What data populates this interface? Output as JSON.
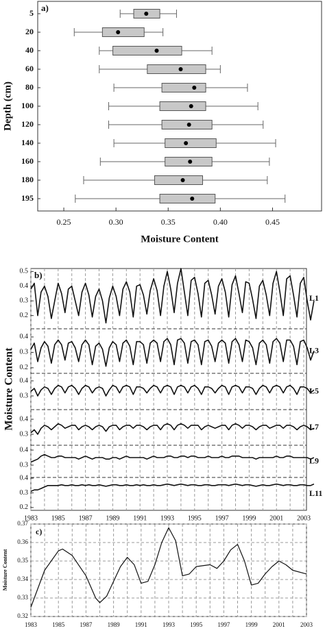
{
  "chart_data": [
    {
      "type": "box",
      "label": "a)",
      "xlabel": "Moisture Content",
      "ylabel": "Depth (cm)",
      "categories": [
        "5",
        "20",
        "40",
        "60",
        "80",
        "100",
        "120",
        "140",
        "160",
        "180",
        "195"
      ],
      "boxes": [
        {
          "whislo": 0.304,
          "q1": 0.317,
          "q3": 0.342,
          "whishi": 0.358,
          "mean": 0.329
        },
        {
          "whislo": 0.26,
          "q1": 0.287,
          "q3": 0.327,
          "whishi": 0.345,
          "mean": 0.302
        },
        {
          "whislo": 0.284,
          "q1": 0.297,
          "q3": 0.363,
          "whishi": 0.392,
          "mean": 0.339
        },
        {
          "whislo": 0.284,
          "q1": 0.33,
          "q3": 0.386,
          "whishi": 0.4,
          "mean": 0.362
        },
        {
          "whislo": 0.298,
          "q1": 0.344,
          "q3": 0.386,
          "whishi": 0.426,
          "mean": 0.375
        },
        {
          "whislo": 0.293,
          "q1": 0.342,
          "q3": 0.386,
          "whishi": 0.436,
          "mean": 0.372
        },
        {
          "whislo": 0.293,
          "q1": 0.344,
          "q3": 0.392,
          "whishi": 0.441,
          "mean": 0.37
        },
        {
          "whislo": 0.298,
          "q1": 0.347,
          "q3": 0.396,
          "whishi": 0.453,
          "mean": 0.367
        },
        {
          "whislo": 0.285,
          "q1": 0.347,
          "q3": 0.392,
          "whishi": 0.447,
          "mean": 0.371
        },
        {
          "whislo": 0.269,
          "q1": 0.337,
          "q3": 0.383,
          "whishi": 0.445,
          "mean": 0.364
        },
        {
          "whislo": 0.261,
          "q1": 0.342,
          "q3": 0.395,
          "whishi": 0.462,
          "mean": 0.373
        }
      ],
      "color": "#c8c8c8",
      "xlim": [
        0.225,
        0.497
      ],
      "xticks": [
        0.25,
        {
          "value": 0.3,
          "label": "0.30"
        },
        0.35,
        {
          "value": 0.4,
          "label": "0.40"
        },
        0.45
      ]
    },
    {
      "type": "line",
      "label": "b)",
      "ylabel": "Moisture Content",
      "x": [
        1983,
        1983.25,
        1983.5,
        1983.75,
        1984,
        1984.25,
        1984.5,
        1984.75,
        1985,
        1985.25,
        1985.5,
        1985.75,
        1986,
        1986.25,
        1986.5,
        1986.75,
        1987,
        1987.25,
        1987.5,
        1987.75,
        1988,
        1988.25,
        1988.5,
        1988.75,
        1989,
        1989.25,
        1989.5,
        1989.75,
        1990,
        1990.25,
        1990.5,
        1990.75,
        1991,
        1991.25,
        1991.5,
        1991.75,
        1992,
        1992.25,
        1992.5,
        1992.75,
        1993,
        1993.25,
        1993.5,
        1993.75,
        1994,
        1994.25,
        1994.5,
        1994.75,
        1995,
        1995.25,
        1995.5,
        1995.75,
        1996,
        1996.25,
        1996.5,
        1996.75,
        1997,
        1997.25,
        1997.5,
        1997.75,
        1998,
        1998.25,
        1998.5,
        1998.75,
        1999,
        1999.25,
        1999.5,
        1999.75,
        2000,
        2000.25,
        2000.5,
        2000.75,
        2001,
        2001.25,
        2001.5,
        2001.75,
        2002,
        2002.25,
        2002.5,
        2002.75,
        2003,
        2003.25,
        2003.5,
        2003.75
      ],
      "xlim": [
        1983,
        2003.2
      ],
      "xticks": [
        1983,
        1985,
        1987,
        1989,
        1991,
        1993,
        1995,
        1997,
        1999,
        2001,
        2003
      ],
      "xminorticks": [
        1984,
        1986,
        1988,
        1990,
        1992,
        1994,
        1996,
        1998,
        2000,
        2002
      ],
      "color": "#111111",
      "series": [
        {
          "name": "L1",
          "ylim": [
            0.11,
            0.52
          ],
          "yticks": [
            0.2,
            0.3,
            0.4,
            0.5
          ],
          "values": [
            0.38,
            0.42,
            0.2,
            0.36,
            0.4,
            0.33,
            0.18,
            0.3,
            0.42,
            0.35,
            0.22,
            0.38,
            0.4,
            0.3,
            0.2,
            0.36,
            0.42,
            0.34,
            0.19,
            0.33,
            0.38,
            0.3,
            0.15,
            0.32,
            0.4,
            0.33,
            0.2,
            0.38,
            0.43,
            0.36,
            0.19,
            0.4,
            0.41,
            0.34,
            0.21,
            0.37,
            0.45,
            0.37,
            0.2,
            0.4,
            0.5,
            0.38,
            0.22,
            0.42,
            0.52,
            0.36,
            0.2,
            0.44,
            0.46,
            0.35,
            0.19,
            0.42,
            0.44,
            0.34,
            0.21,
            0.4,
            0.45,
            0.36,
            0.19,
            0.41,
            0.47,
            0.35,
            0.22,
            0.43,
            0.42,
            0.31,
            0.18,
            0.4,
            0.44,
            0.34,
            0.2,
            0.42,
            0.5,
            0.36,
            0.2,
            0.45,
            0.47,
            0.34,
            0.19,
            0.42,
            0.46,
            0.3,
            0.17,
            0.3
          ]
        },
        {
          "name": "L3",
          "ylim": [
            0.164,
            0.453
          ],
          "yticks": [
            0.2,
            0.3,
            0.4
          ],
          "values": [
            0.32,
            0.36,
            0.24,
            0.33,
            0.37,
            0.34,
            0.23,
            0.35,
            0.38,
            0.35,
            0.25,
            0.36,
            0.37,
            0.33,
            0.24,
            0.35,
            0.38,
            0.35,
            0.22,
            0.34,
            0.36,
            0.32,
            0.21,
            0.33,
            0.37,
            0.35,
            0.24,
            0.36,
            0.38,
            0.34,
            0.22,
            0.37,
            0.37,
            0.35,
            0.23,
            0.36,
            0.38,
            0.36,
            0.24,
            0.37,
            0.39,
            0.35,
            0.22,
            0.38,
            0.39,
            0.36,
            0.23,
            0.37,
            0.38,
            0.35,
            0.22,
            0.37,
            0.38,
            0.34,
            0.24,
            0.36,
            0.38,
            0.36,
            0.23,
            0.37,
            0.39,
            0.35,
            0.24,
            0.38,
            0.37,
            0.33,
            0.22,
            0.36,
            0.38,
            0.35,
            0.23,
            0.37,
            0.39,
            0.36,
            0.24,
            0.38,
            0.38,
            0.34,
            0.22,
            0.37,
            0.38,
            0.33,
            0.25,
            0.31
          ]
        },
        {
          "name": "L5",
          "ylim": [
            0.209,
            0.45
          ],
          "yticks": [
            0.3,
            0.4
          ],
          "values": [
            0.33,
            0.35,
            0.3,
            0.34,
            0.36,
            0.35,
            0.31,
            0.35,
            0.37,
            0.36,
            0.32,
            0.36,
            0.37,
            0.35,
            0.31,
            0.35,
            0.37,
            0.36,
            0.32,
            0.35,
            0.36,
            0.35,
            0.3,
            0.34,
            0.37,
            0.36,
            0.32,
            0.36,
            0.37,
            0.36,
            0.31,
            0.36,
            0.36,
            0.35,
            0.32,
            0.35,
            0.37,
            0.36,
            0.32,
            0.36,
            0.37,
            0.36,
            0.31,
            0.36,
            0.37,
            0.36,
            0.32,
            0.36,
            0.37,
            0.35,
            0.31,
            0.36,
            0.36,
            0.35,
            0.32,
            0.35,
            0.37,
            0.36,
            0.31,
            0.36,
            0.37,
            0.36,
            0.32,
            0.36,
            0.36,
            0.35,
            0.31,
            0.35,
            0.37,
            0.36,
            0.32,
            0.36,
            0.37,
            0.36,
            0.32,
            0.36,
            0.37,
            0.35,
            0.31,
            0.36,
            0.36,
            0.35,
            0.32,
            0.34
          ]
        },
        {
          "name": "L7",
          "ylim": [
            0.227,
            0.464
          ],
          "yticks": [
            0.3,
            0.4
          ],
          "values": [
            0.31,
            0.33,
            0.3,
            0.34,
            0.36,
            0.35,
            0.33,
            0.35,
            0.37,
            0.36,
            0.34,
            0.35,
            0.36,
            0.36,
            0.33,
            0.35,
            0.36,
            0.35,
            0.33,
            0.35,
            0.36,
            0.35,
            0.32,
            0.35,
            0.36,
            0.36,
            0.33,
            0.35,
            0.36,
            0.36,
            0.34,
            0.36,
            0.36,
            0.35,
            0.33,
            0.35,
            0.36,
            0.36,
            0.33,
            0.36,
            0.37,
            0.36,
            0.33,
            0.36,
            0.37,
            0.36,
            0.34,
            0.36,
            0.36,
            0.36,
            0.33,
            0.35,
            0.36,
            0.35,
            0.34,
            0.35,
            0.36,
            0.36,
            0.33,
            0.36,
            0.37,
            0.36,
            0.34,
            0.36,
            0.36,
            0.35,
            0.33,
            0.35,
            0.36,
            0.36,
            0.34,
            0.35,
            0.36,
            0.36,
            0.34,
            0.36,
            0.36,
            0.35,
            0.33,
            0.35,
            0.36,
            0.35,
            0.33,
            0.34
          ]
        },
        {
          "name": "L9",
          "ylim": [
            0.218,
            0.432
          ],
          "yticks": [
            0.3,
            0.4
          ],
          "values": [
            0.32,
            0.33,
            0.34,
            0.36,
            0.37,
            0.36,
            0.35,
            0.35,
            0.36,
            0.36,
            0.35,
            0.35,
            0.35,
            0.35,
            0.34,
            0.35,
            0.36,
            0.35,
            0.34,
            0.35,
            0.35,
            0.35,
            0.34,
            0.34,
            0.35,
            0.35,
            0.34,
            0.35,
            0.36,
            0.35,
            0.35,
            0.35,
            0.35,
            0.35,
            0.34,
            0.35,
            0.36,
            0.35,
            0.35,
            0.35,
            0.36,
            0.36,
            0.35,
            0.35,
            0.36,
            0.36,
            0.35,
            0.36,
            0.36,
            0.35,
            0.35,
            0.35,
            0.36,
            0.35,
            0.35,
            0.35,
            0.36,
            0.35,
            0.35,
            0.36,
            0.36,
            0.36,
            0.35,
            0.35,
            0.35,
            0.35,
            0.34,
            0.35,
            0.35,
            0.35,
            0.35,
            0.35,
            0.36,
            0.35,
            0.35,
            0.36,
            0.36,
            0.35,
            0.35,
            0.35,
            0.35,
            0.35,
            0.34,
            0.35
          ]
        },
        {
          "name": "L11",
          "ylim": [
            0.181,
            0.405
          ],
          "yticks": [
            0.2,
            0.3,
            0.4
          ],
          "values": [
            0.31,
            0.32,
            0.32,
            0.33,
            0.34,
            0.35,
            0.35,
            0.35,
            0.35,
            0.355,
            0.35,
            0.35,
            0.355,
            0.35,
            0.35,
            0.355,
            0.35,
            0.355,
            0.35,
            0.35,
            0.355,
            0.35,
            0.345,
            0.35,
            0.355,
            0.355,
            0.35,
            0.35,
            0.355,
            0.35,
            0.35,
            0.355,
            0.35,
            0.355,
            0.35,
            0.35,
            0.355,
            0.35,
            0.35,
            0.355,
            0.36,
            0.355,
            0.35,
            0.355,
            0.36,
            0.355,
            0.35,
            0.355,
            0.355,
            0.35,
            0.35,
            0.355,
            0.355,
            0.35,
            0.35,
            0.355,
            0.355,
            0.355,
            0.35,
            0.355,
            0.36,
            0.355,
            0.35,
            0.355,
            0.355,
            0.35,
            0.345,
            0.35,
            0.355,
            0.35,
            0.35,
            0.355,
            0.36,
            0.355,
            0.35,
            0.355,
            0.355,
            0.35,
            0.35,
            0.355,
            0.355,
            0.35,
            0.35,
            0.36
          ]
        }
      ]
    },
    {
      "type": "line",
      "label": "c)",
      "ylabel": "Moisture Content",
      "color": "#111111",
      "x": [
        1983,
        1984,
        1985,
        1985.3,
        1986,
        1987,
        1987.7,
        1988,
        1988.5,
        1989,
        1989.5,
        1990,
        1990.5,
        1991,
        1991.5,
        1992,
        1992.5,
        1993,
        1993.5,
        1994,
        1994.5,
        1995,
        1996,
        1996.5,
        1997,
        1997.5,
        1998,
        1998.5,
        1999,
        1999.5,
        2000,
        2000.5,
        2001,
        2001.5,
        2002,
        2003
      ],
      "values": [
        0.325,
        0.345,
        0.3555,
        0.3565,
        0.353,
        0.342,
        0.33,
        0.3275,
        0.331,
        0.339,
        0.347,
        0.352,
        0.348,
        0.338,
        0.339,
        0.348,
        0.36,
        0.368,
        0.361,
        0.342,
        0.343,
        0.347,
        0.348,
        0.346,
        0.35,
        0.356,
        0.359,
        0.35,
        0.337,
        0.338,
        0.343,
        0.347,
        0.35,
        0.348,
        0.345,
        0.343
      ],
      "xlim": [
        1983,
        2003
      ],
      "xticks": [
        1983,
        1985,
        1987,
        1989,
        1991,
        1993,
        1995,
        1997,
        1999,
        2001,
        2003
      ],
      "xminorticks": [
        1984,
        1986,
        1988,
        1990,
        1992,
        1994,
        1996,
        1998,
        2000,
        2002
      ],
      "ylim": [
        0.32,
        0.37
      ],
      "yticks": [
        0.32,
        0.33,
        0.34,
        0.35,
        0.36,
        0.37
      ],
      "grid": true
    }
  ]
}
